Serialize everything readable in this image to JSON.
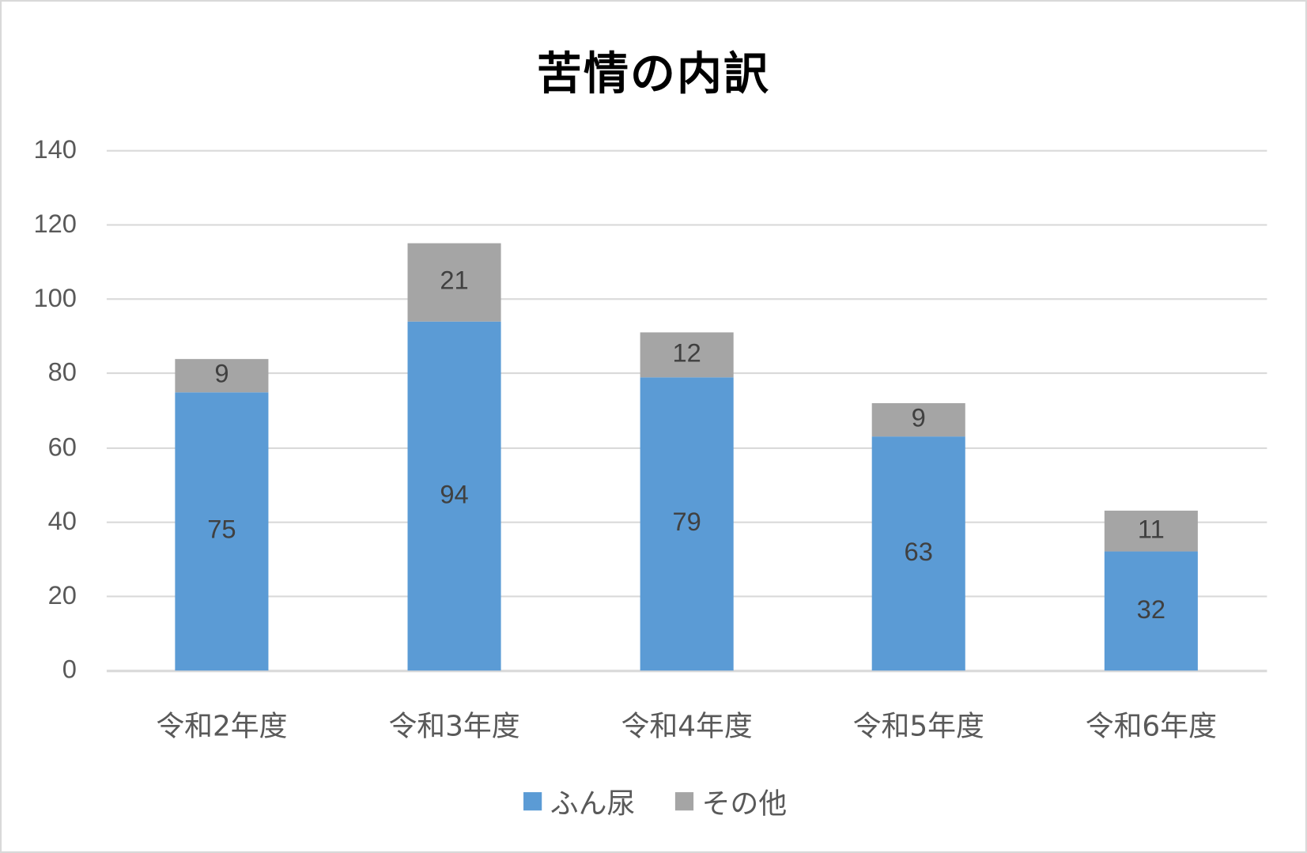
{
  "chart_data": {
    "type": "bar",
    "stacked": true,
    "title": "苦情の内訳",
    "xlabel": "",
    "ylabel": "",
    "ylim": [
      0,
      140
    ],
    "yticks": [
      "0",
      "20",
      "40",
      "60",
      "80",
      "100",
      "120",
      "140"
    ],
    "grid": true,
    "legend_position": "bottom",
    "categories": [
      "令和2年度",
      "令和3年度",
      "令和4年度",
      "令和5年度",
      "令和6年度"
    ],
    "series": [
      {
        "name": "ふん尿",
        "color": "#5b9bd5",
        "values": [
          75,
          94,
          79,
          63,
          32
        ]
      },
      {
        "name": "その他",
        "color": "#a5a5a5",
        "values": [
          9,
          21,
          12,
          9,
          11
        ]
      }
    ]
  },
  "labels": {
    "title": "苦情の内訳",
    "yticks": [
      "0",
      "20",
      "40",
      "60",
      "80",
      "100",
      "120",
      "140"
    ],
    "categories": [
      "令和2年度",
      "令和3年度",
      "令和4年度",
      "令和5年度",
      "令和6年度"
    ],
    "fun": [
      "75",
      "94",
      "79",
      "63",
      "32"
    ],
    "other": [
      "9",
      "21",
      "12",
      "9",
      "11"
    ],
    "legend": [
      "ふん尿",
      "その他"
    ]
  }
}
